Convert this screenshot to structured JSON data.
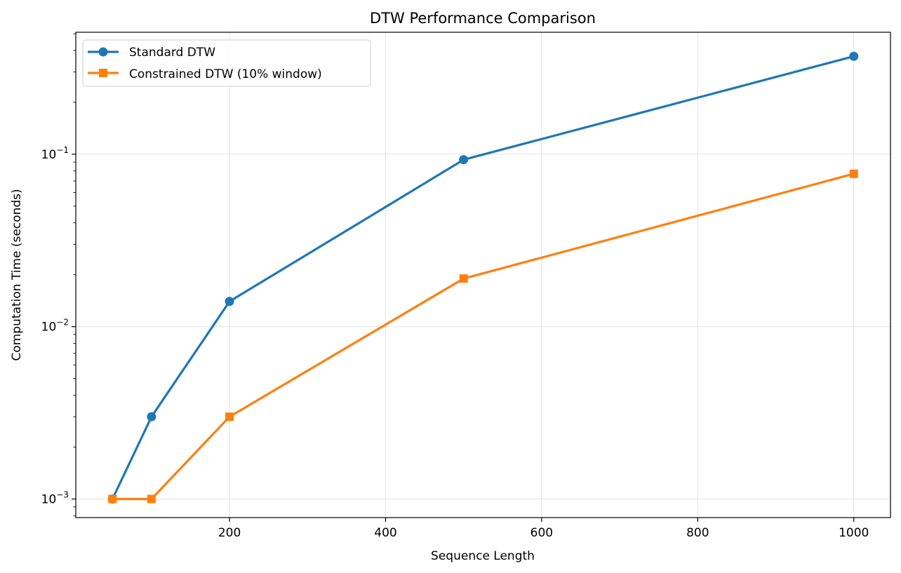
{
  "chart_data": {
    "type": "line",
    "title": "DTW Performance Comparison",
    "xlabel": "Sequence Length",
    "ylabel": "Computation Time (seconds)",
    "x": [
      50,
      100,
      200,
      500,
      1000
    ],
    "series": [
      {
        "name": "Standard DTW",
        "values": [
          0.001,
          0.003,
          0.014,
          0.093,
          0.37
        ],
        "color": "#1f77b4",
        "marker": "circle"
      },
      {
        "name": "Constrained DTW (10% window)",
        "values": [
          0.001,
          0.001,
          0.003,
          0.019,
          0.077
        ],
        "color": "#ff7f0e",
        "marker": "square"
      }
    ],
    "xlim": [
      3,
      1047
    ],
    "ylim": [
      0.00078,
      0.51
    ],
    "yscale": "log",
    "xticks": [
      200,
      400,
      600,
      800,
      1000
    ],
    "xtick_labels": [
      "200",
      "400",
      "600",
      "800",
      "1000"
    ],
    "yticks": [
      0.001,
      0.01,
      0.1
    ],
    "ytick_labels": [
      {
        "base": "10",
        "exp": "−3"
      },
      {
        "base": "10",
        "exp": "−2"
      },
      {
        "base": "10",
        "exp": "−1"
      }
    ],
    "grid": true,
    "legend_position": "upper-left"
  }
}
